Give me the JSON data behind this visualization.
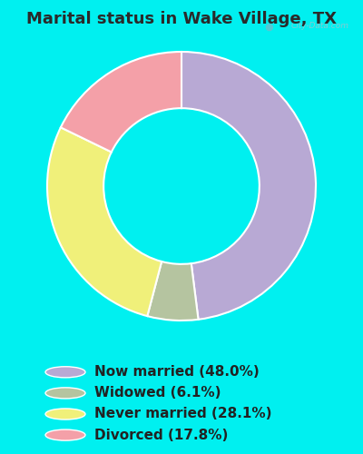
{
  "title": "Marital status in Wake Village, TX",
  "categories": [
    "Now married (48.0%)",
    "Widowed (6.1%)",
    "Never married (28.1%)",
    "Divorced (17.8%)"
  ],
  "values": [
    48.0,
    6.1,
    28.1,
    17.8
  ],
  "colors": [
    "#b8a9d4",
    "#b5c4a0",
    "#f0f07a",
    "#f4a0a8"
  ],
  "bg_color": "#00f0f0",
  "chart_bg_color": "#dff2e8",
  "watermark": "City-Data.com",
  "donut_width": 0.42,
  "title_fontsize": 13,
  "legend_fontsize": 11,
  "title_color": "#2a2a2a"
}
